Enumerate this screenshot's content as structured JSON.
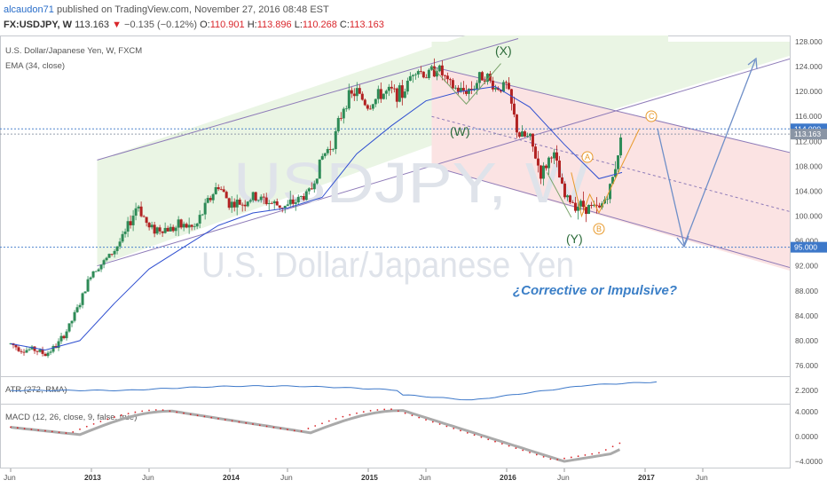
{
  "header": {
    "author": "alcaudon71",
    "published": " published on TradingView.com, November 27, 2016 08:48 EST",
    "symbol": "FX:USDJPY, W ",
    "last": "113.163",
    "arrow": "▼",
    "change": "−0.135 (−0.12%)",
    "open_label": "O:",
    "open": "110.901",
    "high_label": "H:",
    "high": "113.896",
    "low_label": "L:",
    "low": "110.268",
    "close_label": "C:",
    "close": "113.163"
  },
  "main_panel": {
    "instrument_label": "U.S. Dollar/Japanese Yen, W, FXCM",
    "ema_label": "EMA (34, close)",
    "watermark_symbol": "USDJPY, W",
    "watermark_name": "U.S. Dollar/Japanese Yen",
    "annotation": "¿Corrective or Impulsive?",
    "wave_labels": {
      "X": "(X)",
      "W": "(W)",
      "Y": "(Y)",
      "A": "A",
      "B": "B",
      "C": "C"
    },
    "price_tags": [
      {
        "value": "114.000",
        "price": 114.0,
        "color": "#3d78c9"
      },
      {
        "value": "113.163",
        "price": 113.163,
        "color": "#8a95a5"
      },
      {
        "value": "95.000",
        "price": 95.0,
        "color": "#3d78c9"
      }
    ]
  },
  "atr_panel": {
    "label": "ATR (272, RMA)"
  },
  "macd_panel": {
    "label": "MACD (12, 26, close, 9, false, true)"
  },
  "colors": {
    "accent_blue": "#3d78c9",
    "ema_line": "#2f4fd0",
    "bull_candle": "#2e8b57",
    "bear_candle": "#b22222",
    "up_channel_fill": "#eaf5e4",
    "down_channel_fill": "#fbe3e3",
    "channel_line": "#8e7bb8",
    "macd_line": "#aaaaaa",
    "signal_dots": "#d9262b"
  },
  "chart_data": [
    {
      "type": "candlestick",
      "title": "U.S. Dollar/Japanese Yen, W, FXCM",
      "ylim": [
        74,
        128
      ],
      "y_ticks": [
        76,
        80,
        84,
        88,
        92,
        96,
        100,
        104,
        108,
        112,
        116,
        120,
        124,
        128
      ],
      "y_tick_labels": [
        "76.000",
        "80.000",
        "84.000",
        "88.000",
        "92.000",
        "96.000",
        "100.000",
        "104.000",
        "108.000",
        "112.000",
        "116.000",
        "120.000",
        "124.000",
        "128.000"
      ],
      "x_tick_labels": [
        "Jun",
        "2013",
        "Jun",
        "2014",
        "Jun",
        "2015",
        "Jun",
        "2016",
        "Jun",
        "2017",
        "Jun"
      ],
      "series": [
        {
          "name": "USDJPY",
          "close_path": [
            [
              "2012-06",
              79.5
            ],
            [
              "2012-07",
              78.5
            ],
            [
              "2012-08",
              78.6
            ],
            [
              "2012-09",
              77.8
            ],
            [
              "2012-10",
              79.2
            ],
            [
              "2012-11",
              82.0
            ],
            [
              "2012-12",
              86.0
            ],
            [
              "2013-01",
              91.0
            ],
            [
              "2013-02",
              92.5
            ],
            [
              "2013-03",
              94.5
            ],
            [
              "2013-04",
              97.5
            ],
            [
              "2013-05",
              102.0
            ],
            [
              "2013-06",
              98.0
            ],
            [
              "2013-07",
              98.0
            ],
            [
              "2013-08",
              98.0
            ],
            [
              "2013-09",
              98.5
            ],
            [
              "2013-10",
              98.0
            ],
            [
              "2013-11",
              102.0
            ],
            [
              "2013-12",
              105.0
            ],
            [
              "2014-01",
              102.0
            ],
            [
              "2014-02",
              102.0
            ],
            [
              "2014-03",
              103.0
            ],
            [
              "2014-04",
              102.5
            ],
            [
              "2014-05",
              101.8
            ],
            [
              "2014-06",
              101.5
            ],
            [
              "2014-07",
              102.8
            ],
            [
              "2014-08",
              104.0
            ],
            [
              "2014-09",
              109.5
            ],
            [
              "2014-10",
              112.0
            ],
            [
              "2014-11",
              118.5
            ],
            [
              "2014-12",
              120.0
            ],
            [
              "2015-01",
              117.5
            ],
            [
              "2015-02",
              119.5
            ],
            [
              "2015-03",
              120.0
            ],
            [
              "2015-04",
              119.5
            ],
            [
              "2015-05",
              124.0
            ],
            [
              "2015-06",
              122.5
            ],
            [
              "2015-07",
              124.0
            ],
            [
              "2015-08",
              121.0
            ],
            [
              "2015-09",
              120.0
            ],
            [
              "2015-10",
              120.5
            ],
            [
              "2015-11",
              123.0
            ],
            [
              "2015-12",
              120.5
            ],
            [
              "2016-01",
              121.0
            ],
            [
              "2016-02",
              113.0
            ],
            [
              "2016-03",
              112.5
            ],
            [
              "2016-04",
              106.5
            ],
            [
              "2016-05",
              110.5
            ],
            [
              "2016-06",
              103.0
            ],
            [
              "2016-07",
              102.0
            ],
            [
              "2016-08",
              101.5
            ],
            [
              "2016-09",
              101.0
            ],
            [
              "2016-10",
              104.5
            ],
            [
              "2016-11",
              113.163
            ]
          ]
        },
        {
          "name": "EMA (34, close)",
          "values": [
            [
              "2012-06",
              79.5
            ],
            [
              "2012-09",
              78.5
            ],
            [
              "2012-12",
              80.0
            ],
            [
              "2013-03",
              86.0
            ],
            [
              "2013-06",
              91.5
            ],
            [
              "2013-09",
              95.0
            ],
            [
              "2013-12",
              98.5
            ],
            [
              "2014-03",
              100.5
            ],
            [
              "2014-06",
              101.3
            ],
            [
              "2014-09",
              103.0
            ],
            [
              "2014-12",
              110.0
            ],
            [
              "2015-03",
              114.5
            ],
            [
              "2015-06",
              118.5
            ],
            [
              "2015-09",
              120.0
            ],
            [
              "2015-12",
              120.8
            ],
            [
              "2016-03",
              117.5
            ],
            [
              "2016-06",
              111.5
            ],
            [
              "2016-09",
              106.0
            ],
            [
              "2016-11",
              107.0
            ]
          ]
        }
      ]
    },
    {
      "type": "line",
      "title": "ATR (272, RMA)",
      "y_ticks": [
        2.2
      ],
      "y_tick_labels": [
        "2.2000"
      ]
    },
    {
      "type": "line",
      "title": "MACD (12, 26, close, 9, false, true)",
      "y_ticks": [
        4,
        0,
        -4
      ],
      "y_tick_labels": [
        "4.0000",
        "0.0000",
        "−4.0000"
      ]
    }
  ]
}
